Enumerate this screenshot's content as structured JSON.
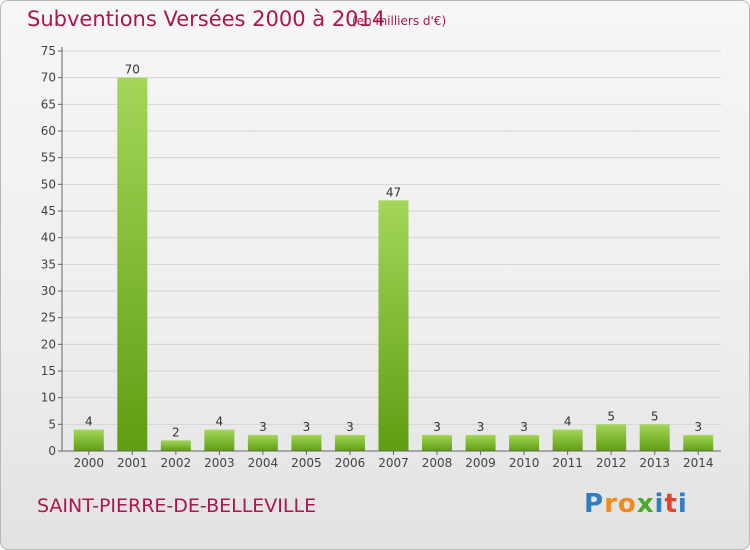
{
  "header": {
    "title": "Subventions Versées 2000 à 2014",
    "unit_note": "(en milliers d'€)"
  },
  "footer": {
    "commune": "SAINT-PIERRE-DE-BELLEVILLE",
    "logo_letters": [
      "P",
      "r",
      "o",
      "x",
      "i",
      "t",
      "i"
    ],
    "logo_colors": [
      "#2f7ec2",
      "#f08a1c",
      "#f08a1c",
      "#4aa82a",
      "#2f7ec2",
      "#e0422c",
      "#2f7ec2"
    ]
  },
  "colors": {
    "title": "#a8174f",
    "bar_top": "#a4d659",
    "bar_bottom": "#5f9d12",
    "grid": "#d4d4d4",
    "axis": "#666666"
  },
  "chart_data": {
    "type": "bar",
    "title": "Subventions Versées 2000 à 2014",
    "subtitle": "(en milliers d'€)",
    "categories": [
      "2000",
      "2001",
      "2002",
      "2003",
      "2004",
      "2005",
      "2006",
      "2007",
      "2008",
      "2009",
      "2010",
      "2011",
      "2012",
      "2013",
      "2014"
    ],
    "values": [
      4,
      70,
      2,
      4,
      3,
      3,
      3,
      47,
      3,
      3,
      3,
      4,
      5,
      5,
      3
    ],
    "ylim": [
      0,
      75
    ],
    "yticks": [
      0,
      5,
      10,
      15,
      20,
      25,
      30,
      35,
      40,
      45,
      50,
      55,
      60,
      65,
      70,
      75
    ],
    "grid": true,
    "data_labels": true
  }
}
